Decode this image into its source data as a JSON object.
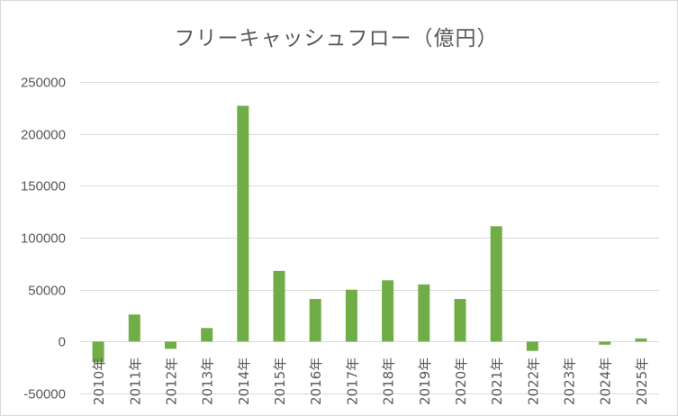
{
  "chart_data": {
    "type": "bar",
    "title": "フリーキャッシュフロー（億円）",
    "categories": [
      "2010年",
      "2011年",
      "2012年",
      "2013年",
      "2014年",
      "2015年",
      "2016年",
      "2017年",
      "2018年",
      "2019年",
      "2020年",
      "2021年",
      "2022年",
      "2023年",
      "2024年",
      "2025年"
    ],
    "values": [
      -20000,
      26000,
      -7000,
      13000,
      227000,
      68000,
      41000,
      50000,
      59000,
      55000,
      41000,
      111000,
      -9000,
      0,
      -3000,
      3000
    ],
    "yticks": [
      "250000",
      "200000",
      "150000",
      "100000",
      "50000",
      "0",
      "-50000"
    ],
    "ytick_values": [
      250000,
      200000,
      150000,
      100000,
      50000,
      0,
      -50000
    ],
    "ylim": [
      -50000,
      250000
    ],
    "grid": true,
    "legend": "none",
    "bar_color": "#70ad47",
    "grid_color": "#d9d9d9",
    "text_color": "#595959"
  }
}
